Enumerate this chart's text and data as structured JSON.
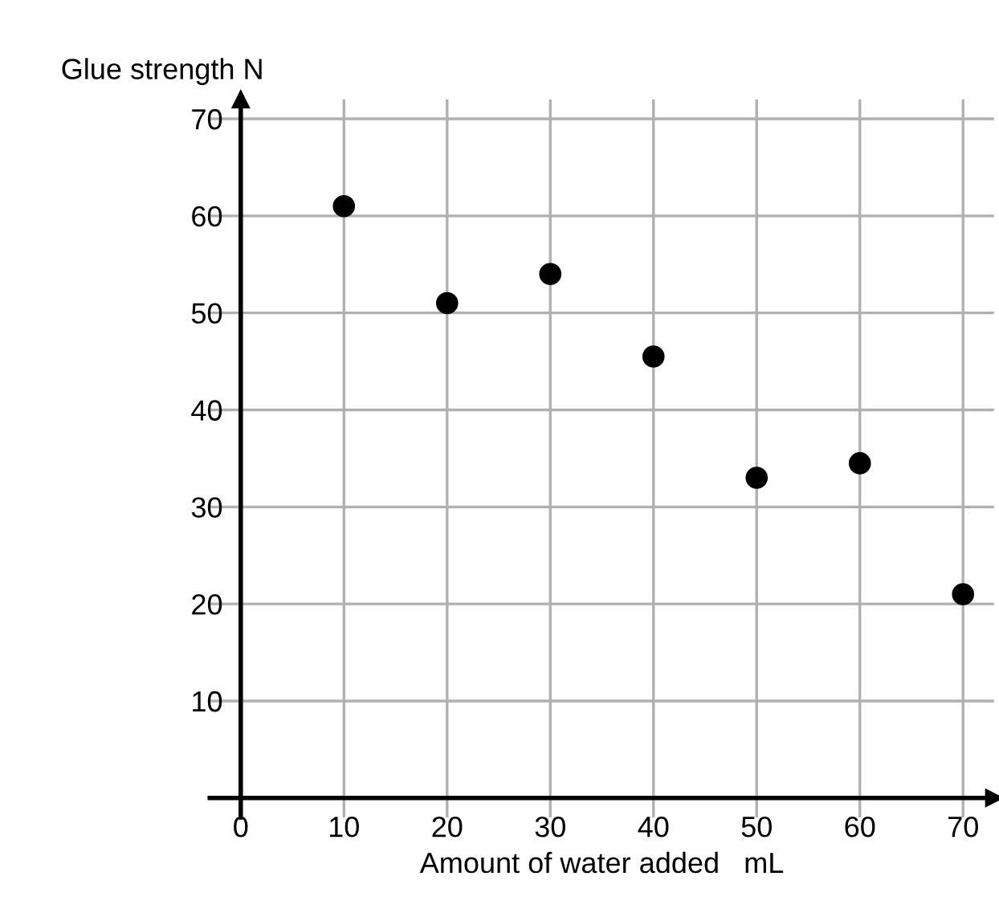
{
  "chart_data": {
    "type": "scatter",
    "xlabel": "Amount of water added   mL",
    "ylabel": "Glue strength N",
    "x": [
      10,
      20,
      30,
      40,
      50,
      60,
      70
    ],
    "series": [
      {
        "color": "#000000",
        "values": [
          61,
          51,
          54,
          45.5,
          33,
          34.5,
          21
        ]
      }
    ],
    "xlim": [
      -3,
      73
    ],
    "ylim": [
      -2,
      72
    ],
    "xticks": [
      0,
      10,
      20,
      30,
      40,
      50,
      60,
      70
    ],
    "yticks": [
      10,
      20,
      30,
      40,
      50,
      60,
      70
    ],
    "grid": true,
    "marker": "circle"
  }
}
